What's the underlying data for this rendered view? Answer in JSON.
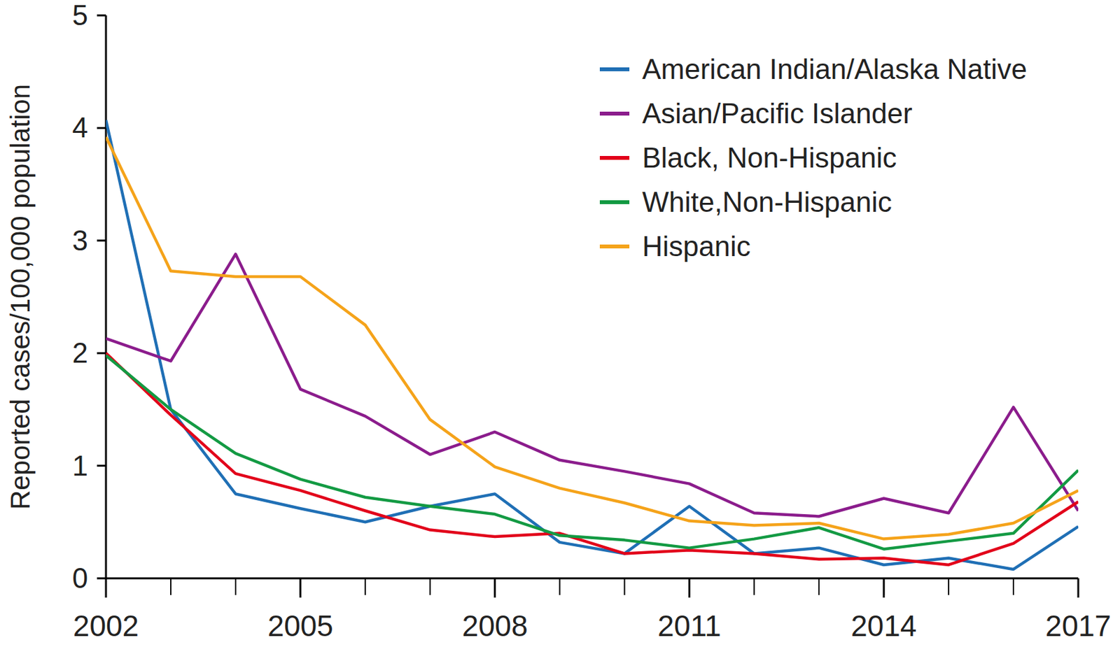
{
  "chart_data": {
    "type": "line",
    "y_label": "Reported cases/100,000 population",
    "x": [
      2002,
      2003,
      2004,
      2005,
      2006,
      2007,
      2008,
      2009,
      2010,
      2011,
      2012,
      2013,
      2014,
      2015,
      2016,
      2017
    ],
    "xlim": [
      2002,
      2017
    ],
    "xticks": [
      2002,
      2005,
      2008,
      2011,
      2014,
      2017
    ],
    "ylim": [
      0,
      5
    ],
    "yticks": [
      0,
      1,
      2,
      3,
      4,
      5
    ],
    "grid": false,
    "legend": "top-right",
    "series": [
      {
        "name": "American Indian/Alaska Native",
        "color": "#1f6fb5",
        "values": [
          4.07,
          1.5,
          0.75,
          0.62,
          0.5,
          0.64,
          0.75,
          0.32,
          0.22,
          0.64,
          0.22,
          0.27,
          0.12,
          0.18,
          0.08,
          0.46
        ]
      },
      {
        "name": "Asian/Pacific Islander",
        "color": "#8b1c8c",
        "values": [
          2.13,
          1.93,
          2.88,
          1.68,
          1.44,
          1.1,
          1.3,
          1.05,
          0.95,
          0.84,
          0.58,
          0.55,
          0.71,
          0.58,
          1.52,
          0.6
        ]
      },
      {
        "name": "Black, Non-Hispanic",
        "color": "#e2001a",
        "values": [
          2.0,
          1.45,
          0.93,
          0.78,
          0.6,
          0.43,
          0.37,
          0.4,
          0.22,
          0.25,
          0.22,
          0.17,
          0.18,
          0.12,
          0.31,
          0.68
        ]
      },
      {
        "name": "White,Non-Hispanic",
        "color": "#139a43",
        "values": [
          1.98,
          1.5,
          1.11,
          0.88,
          0.72,
          0.64,
          0.57,
          0.38,
          0.34,
          0.27,
          0.35,
          0.45,
          0.26,
          0.33,
          0.4,
          0.96
        ]
      },
      {
        "name": "Hispanic",
        "color": "#f5a31a",
        "values": [
          3.92,
          2.73,
          2.68,
          2.68,
          2.25,
          1.41,
          0.99,
          0.8,
          0.67,
          0.51,
          0.47,
          0.49,
          0.35,
          0.39,
          0.49,
          0.78
        ]
      }
    ]
  }
}
